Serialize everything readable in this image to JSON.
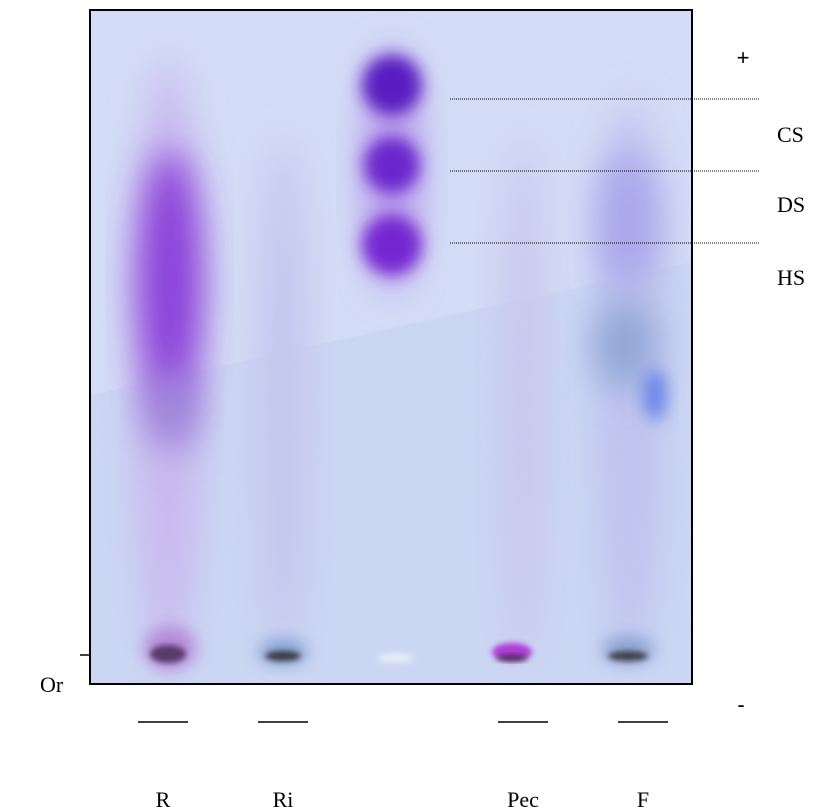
{
  "polarity": {
    "positive": "+",
    "negative": "-"
  },
  "origin": "Or",
  "bands": [
    "CS",
    "DS",
    "HS"
  ],
  "lanes": [
    "R",
    "Ri",
    "Pec",
    "F"
  ]
}
